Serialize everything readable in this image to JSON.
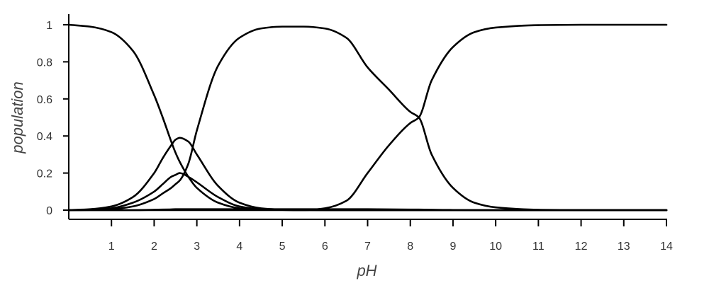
{
  "chart_data": {
    "type": "line",
    "title": "",
    "xlabel": "pH",
    "ylabel": "population",
    "xlim": [
      0,
      14
    ],
    "ylim": [
      0,
      1
    ],
    "x_ticks": [
      1,
      2,
      3,
      4,
      5,
      6,
      7,
      8,
      9,
      10,
      11,
      12,
      13,
      14
    ],
    "x_tick_labels": [
      "1",
      "2",
      "3",
      "4",
      "5",
      "6",
      "7",
      "8",
      "9",
      "10",
      "11",
      "12",
      "13",
      "14"
    ],
    "y_ticks": [
      0,
      0.2,
      0.4,
      0.6,
      0.8,
      1
    ],
    "y_tick_labels": [
      "0",
      "0.2",
      "0.4",
      "0.6",
      "0.8",
      "1"
    ],
    "grid": false,
    "legend": "none",
    "line_color": "#000000",
    "x": [
      0,
      0.5,
      1,
      1.5,
      2,
      2.2,
      2.4,
      2.5,
      2.6,
      2.8,
      3,
      3.5,
      4,
      4.5,
      5,
      5.5,
      6,
      6.5,
      7,
      7.5,
      8,
      8.2,
      8.5,
      9,
      9.5,
      10,
      11,
      12,
      13,
      14
    ],
    "series": [
      {
        "values": [
          1.0,
          0.99,
          0.96,
          0.86,
          0.62,
          0.5,
          0.37,
          0.31,
          0.26,
          0.18,
          0.12,
          0.04,
          0.01,
          0.003,
          0.001,
          0,
          0,
          0,
          0,
          0,
          0,
          0,
          0,
          0,
          0,
          0,
          0,
          0,
          0,
          0
        ]
      },
      {
        "values": [
          0,
          0.005,
          0.02,
          0.07,
          0.2,
          0.28,
          0.35,
          0.38,
          0.39,
          0.37,
          0.3,
          0.13,
          0.04,
          0.01,
          0.003,
          0.001,
          0,
          0,
          0,
          0,
          0,
          0,
          0,
          0,
          0,
          0,
          0,
          0,
          0,
          0
        ]
      },
      {
        "values": [
          0,
          0.002,
          0.01,
          0.04,
          0.1,
          0.14,
          0.18,
          0.19,
          0.2,
          0.18,
          0.15,
          0.07,
          0.02,
          0.005,
          0.001,
          0,
          0,
          0,
          0,
          0,
          0,
          0,
          0,
          0,
          0,
          0,
          0,
          0,
          0,
          0
        ]
      },
      {
        "values": [
          0,
          0.001,
          0.005,
          0.02,
          0.06,
          0.09,
          0.12,
          0.14,
          0.16,
          0.25,
          0.43,
          0.78,
          0.93,
          0.98,
          0.99,
          0.99,
          0.98,
          0.93,
          0.77,
          0.65,
          0.53,
          0.5,
          0.3,
          0.12,
          0.04,
          0.015,
          0.002,
          0,
          0,
          0
        ]
      },
      {
        "values": [
          0,
          0,
          0,
          0,
          0,
          0,
          0,
          0,
          0,
          0,
          0,
          0,
          0,
          0,
          0,
          0,
          0.01,
          0.05,
          0.2,
          0.35,
          0.47,
          0.5,
          0.7,
          0.88,
          0.96,
          0.985,
          0.998,
          1.0,
          1.0,
          1.0
        ]
      },
      {
        "values": [
          0,
          0,
          0,
          0,
          0.002,
          0.003,
          0.004,
          0.005,
          0.005,
          0.005,
          0.005,
          0.005,
          0.005,
          0.005,
          0.005,
          0.005,
          0.005,
          0.005,
          0.005,
          0.004,
          0.003,
          0.003,
          0.002,
          0.001,
          0,
          0,
          0,
          0,
          0,
          0
        ]
      }
    ]
  }
}
